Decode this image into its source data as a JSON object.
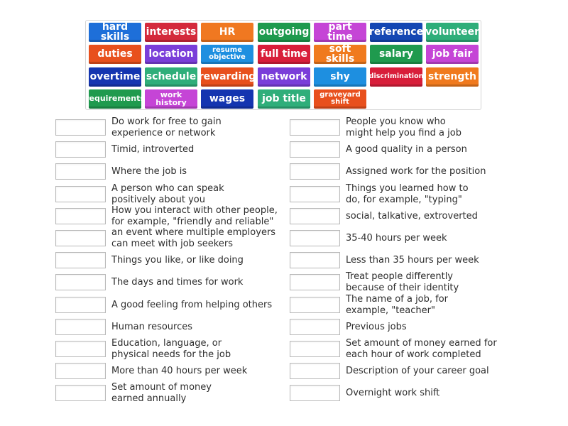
{
  "tiles": [
    {
      "label": "hard skills",
      "color": "#1e6fd9"
    },
    {
      "label": "interests",
      "color": "#d42a3c"
    },
    {
      "label": "HR",
      "color": "#f07821"
    },
    {
      "label": "outgoing",
      "color": "#1f9a4e"
    },
    {
      "label": "part time",
      "color": "#c545d6"
    },
    {
      "label": "reference",
      "color": "#1447b3"
    },
    {
      "label": "volunteer",
      "color": "#2fae7a"
    },
    {
      "label": "duties",
      "color": "#e8501d"
    },
    {
      "label": "location",
      "color": "#7a3ed9"
    },
    {
      "label": "resume objective",
      "color": "#1e8fe0"
    },
    {
      "label": "full time",
      "color": "#d81e3a"
    },
    {
      "label": "soft skills",
      "color": "#f07a1e"
    },
    {
      "label": "salary",
      "color": "#1f9a4e"
    },
    {
      "label": "job fair",
      "color": "#c545d6"
    },
    {
      "label": "overtime",
      "color": "#1435b0"
    },
    {
      "label": "schedule",
      "color": "#2fae7a"
    },
    {
      "label": "rewarding",
      "color": "#e8501d"
    },
    {
      "label": "network",
      "color": "#7a3ed9"
    },
    {
      "label": "shy",
      "color": "#1e8fe0"
    },
    {
      "label": "discrimination",
      "color": "#d81e3a"
    },
    {
      "label": "strength",
      "color": "#f07a1e"
    },
    {
      "label": "requirements",
      "color": "#1f9a4e"
    },
    {
      "label": "work history",
      "color": "#c545d6"
    },
    {
      "label": "wages",
      "color": "#1435b0"
    },
    {
      "label": "job title",
      "color": "#2fae7a"
    },
    {
      "label": "graveyard shift",
      "color": "#e8501d"
    }
  ],
  "clues_left": [
    "Do work for free to gain\nexperience or network",
    "Timid, introverted",
    "Where the job is",
    "A person who can speak\npositively about you",
    "How you interact with other people,\nfor example, \"friendly and reliable\"",
    "an event where multiple employers\ncan meet with job seekers",
    "Things you like, or like doing",
    "The days and times for work",
    "A good feeling from helping others",
    "Human resources",
    "Education, language, or\nphysical needs for the job",
    "More than 40 hours per week",
    "Set amount of money\nearned annually"
  ],
  "clues_right": [
    "People you know who\nmight help you find a job",
    "A good quality in a person",
    "Assigned work for the position",
    "Things you learned how to\ndo, for example, \"typing\"",
    "social, talkative, extroverted",
    "35-40 hours per week",
    "Less than 35 hours per week",
    "Treat people differently\nbecause of their identity",
    "The name of a job, for\nexample, \"teacher\"",
    "Previous jobs",
    "Set amount of money earned for\neach hour of work completed",
    "Description of your career goal",
    "Overnight work shift"
  ]
}
